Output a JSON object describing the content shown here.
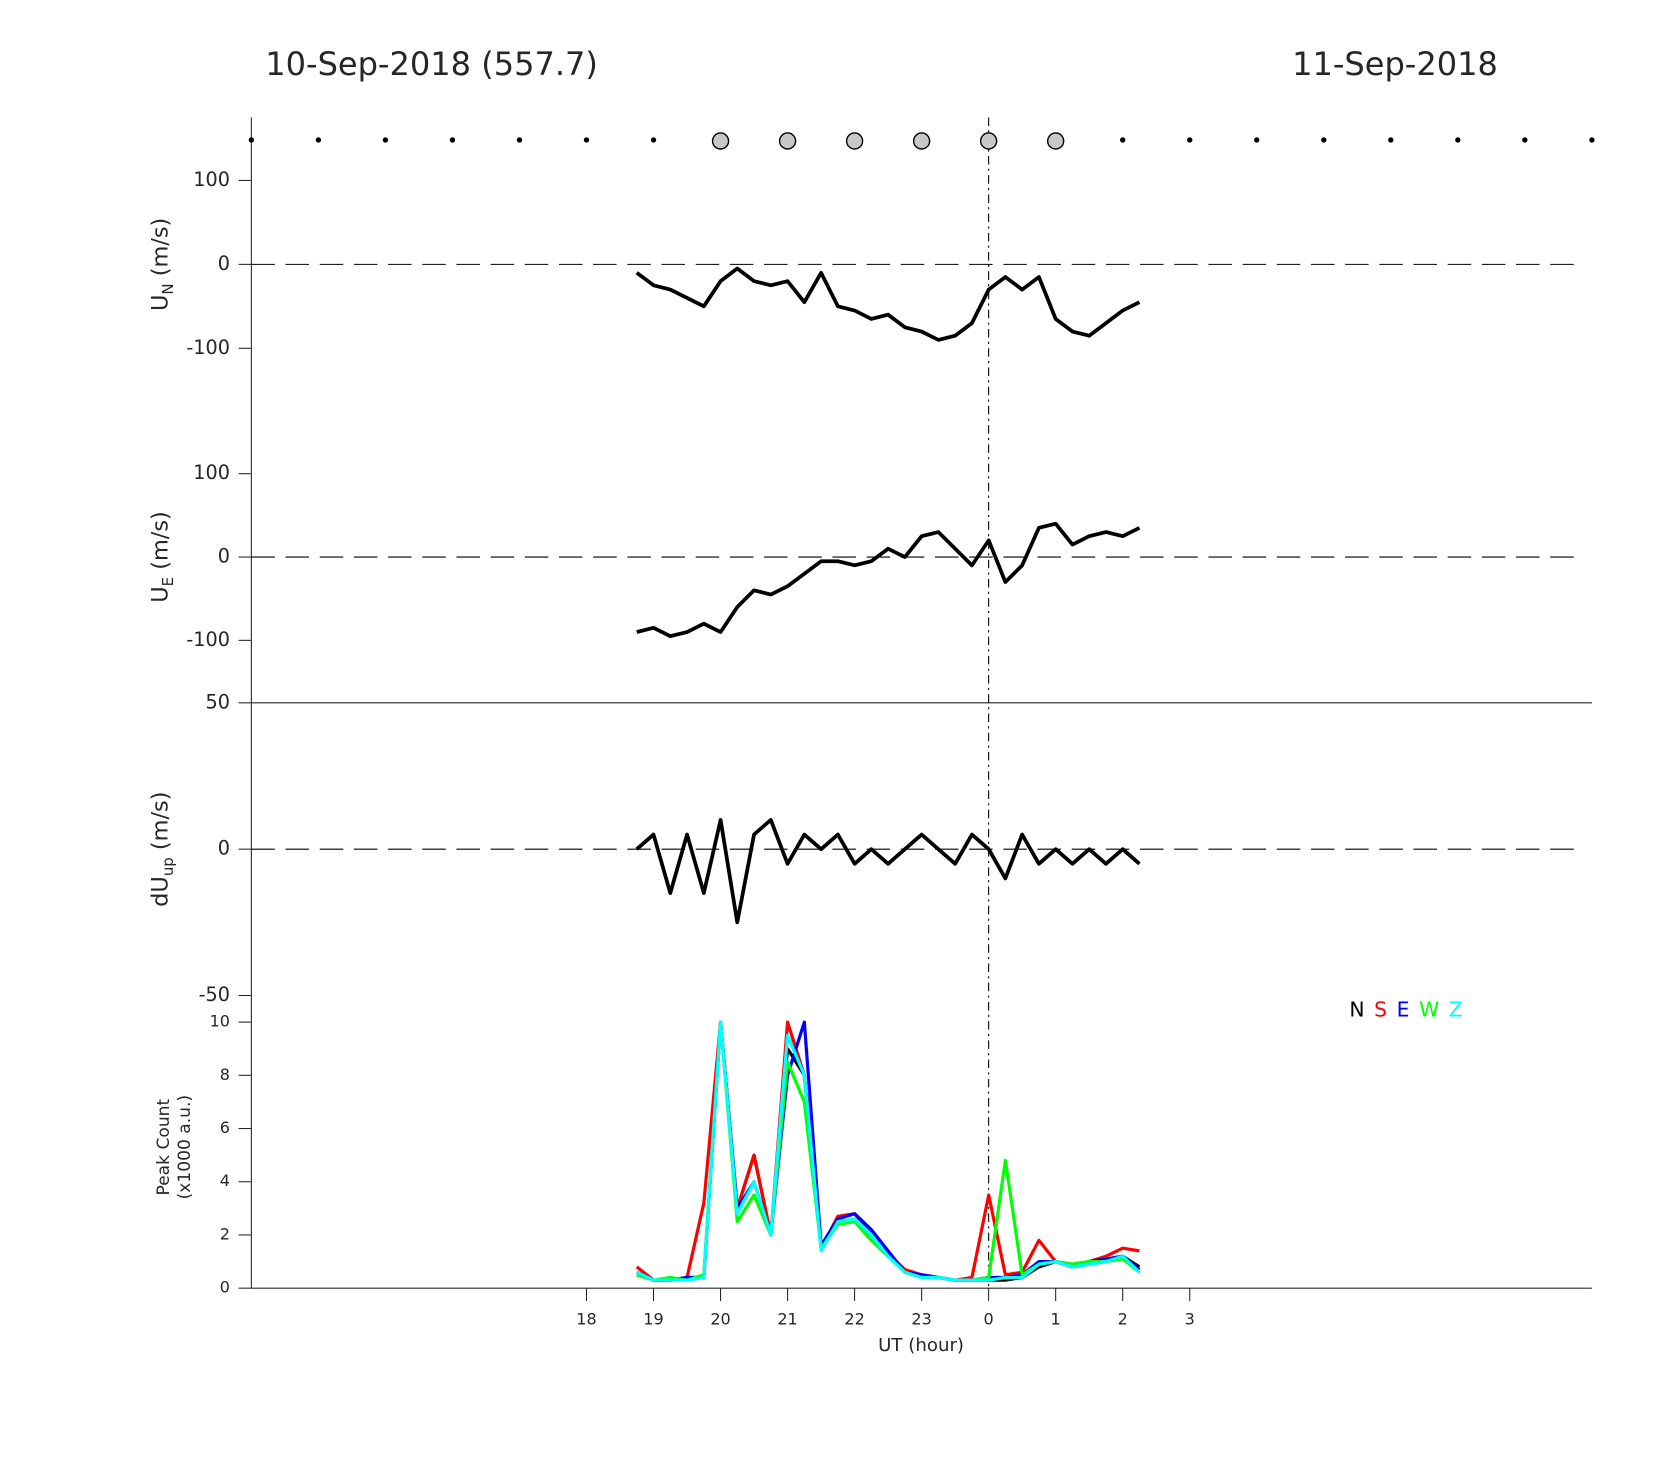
{
  "chart_data": {
    "type": "line",
    "title_left": "10-Sep-2018 (557.7)",
    "title_right": "11-Sep-2018",
    "xlabel": "UT (hour)",
    "xlim": [
      13,
      33
    ],
    "xticks": [
      18,
      19,
      20,
      21,
      22,
      23,
      {
        "value": 24,
        "label": "0"
      },
      {
        "value": 25,
        "label": "1"
      },
      {
        "value": 26,
        "label": "2"
      },
      {
        "value": 27,
        "label": "3"
      }
    ],
    "reference_x": 24,
    "small_markers": [
      13,
      14,
      15,
      16,
      17,
      18,
      19,
      26,
      27,
      28,
      29,
      30,
      31,
      32,
      33
    ],
    "large_markers": [
      20,
      21,
      22,
      23,
      24,
      25
    ],
    "x": [
      18.75,
      19,
      19.25,
      19.5,
      19.75,
      20,
      20.25,
      20.5,
      20.75,
      21,
      21.25,
      21.5,
      21.75,
      22,
      22.25,
      22.5,
      22.75,
      23,
      23.25,
      23.5,
      23.75,
      24,
      24.25,
      24.5,
      24.75,
      25,
      25.25,
      25.5,
      25.75,
      26,
      26.25
    ],
    "panels": [
      {
        "ylabel": {
          "main": "U",
          "sub": "N",
          "unit": " (m/s)"
        },
        "ylim": [
          -175,
          175
        ],
        "yticks": [
          -100,
          0,
          100
        ],
        "zero_line": true,
        "series": [
          {
            "color": "#000000",
            "values": [
              -10,
              -25,
              -30,
              -40,
              -50,
              -20,
              -5,
              -20,
              -25,
              -20,
              -45,
              -10,
              -50,
              -55,
              -65,
              -60,
              -75,
              -80,
              -90,
              -85,
              -70,
              -30,
              -15,
              -30,
              -15,
              -65,
              -80,
              -85,
              -70,
              -55,
              -45
            ]
          }
        ]
      },
      {
        "ylabel": {
          "main": "U",
          "sub": "E",
          "unit": " (m/s)"
        },
        "ylim": [
          -175,
          175
        ],
        "yticks": [
          -100,
          0,
          100
        ],
        "zero_line": true,
        "series": [
          {
            "color": "#000000",
            "values": [
              -90,
              -85,
              -95,
              -90,
              -80,
              -90,
              -60,
              -40,
              -45,
              -35,
              -20,
              -5,
              -5,
              -10,
              -5,
              10,
              0,
              25,
              30,
              10,
              -10,
              20,
              -30,
              -10,
              35,
              40,
              15,
              25,
              30,
              25,
              35
            ]
          }
        ]
      },
      {
        "ylabel": {
          "main": "dU",
          "sub": "up",
          "unit": " (m/s)"
        },
        "ylim": [
          -50,
          50
        ],
        "yticks": [
          -50,
          0,
          50
        ],
        "zero_line": true,
        "series": [
          {
            "color": "#000000",
            "values": [
              0,
              5,
              -15,
              5,
              -15,
              10,
              -25,
              5,
              10,
              -5,
              5,
              0,
              5,
              -5,
              0,
              -5,
              0,
              5,
              0,
              -5,
              5,
              0,
              -10,
              5,
              -5,
              0,
              -5,
              0,
              -5,
              0,
              -5
            ]
          }
        ]
      },
      {
        "ylabel": {
          "main": "Peak Count",
          "unit": "(x1000 a.u.)"
        },
        "ylim": [
          0,
          11
        ],
        "yticks": [
          0,
          2,
          4,
          6,
          8,
          10
        ],
        "zero_line": false,
        "series": [
          {
            "name": "N",
            "color": "#000000",
            "values": [
              0.6,
              0.3,
              0.3,
              0.4,
              0.4,
              10,
              3,
              5,
              2,
              9,
              8,
              1.5,
              2.5,
              2.5,
              2,
              1.3,
              0.6,
              0.5,
              0.4,
              0.3,
              0.3,
              0.3,
              0.3,
              0.4,
              0.8,
              1,
              0.8,
              0.9,
              1,
              1.2,
              0.8
            ]
          },
          {
            "name": "S",
            "color": "#ff0000",
            "values": [
              0.8,
              0.3,
              0.3,
              0.4,
              3.2,
              10,
              3,
              5,
              2,
              10,
              8,
              1.5,
              2.7,
              2.8,
              2,
              1.3,
              0.7,
              0.5,
              0.4,
              0.3,
              0.4,
              3.5,
              0.5,
              0.6,
              1.8,
              1,
              0.9,
              1,
              1.2,
              1.5,
              1.4
            ]
          },
          {
            "name": "E",
            "color": "#0000ff",
            "values": [
              0.6,
              0.3,
              0.3,
              0.4,
              0.4,
              10,
              3,
              4,
              2,
              8,
              10,
              1.6,
              2.6,
              2.8,
              2.2,
              1.4,
              0.6,
              0.5,
              0.4,
              0.3,
              0.3,
              0.4,
              0.4,
              0.5,
              1,
              1,
              0.8,
              1,
              1.1,
              1.2,
              0.7
            ]
          },
          {
            "name": "W",
            "color": "#00ff00",
            "values": [
              0.5,
              0.3,
              0.4,
              0.3,
              0.5,
              10,
              2.5,
              3.5,
              2,
              8.5,
              7,
              1.5,
              2.4,
              2.5,
              1.8,
              1.2,
              0.6,
              0.4,
              0.4,
              0.3,
              0.3,
              0.4,
              4.8,
              0.5,
              0.9,
              1,
              0.9,
              1,
              1,
              1.1,
              0.6
            ]
          },
          {
            "name": "Z",
            "color": "#00ffff",
            "values": [
              0.6,
              0.3,
              0.3,
              0.3,
              0.4,
              10,
              2.8,
              4,
              2,
              9.5,
              8,
              1.4,
              2.5,
              2.6,
              2,
              1.2,
              0.6,
              0.4,
              0.4,
              0.3,
              0.3,
              0.3,
              0.4,
              0.4,
              0.9,
              1,
              0.8,
              0.9,
              1,
              1.2,
              0.6
            ]
          }
        ]
      }
    ]
  }
}
